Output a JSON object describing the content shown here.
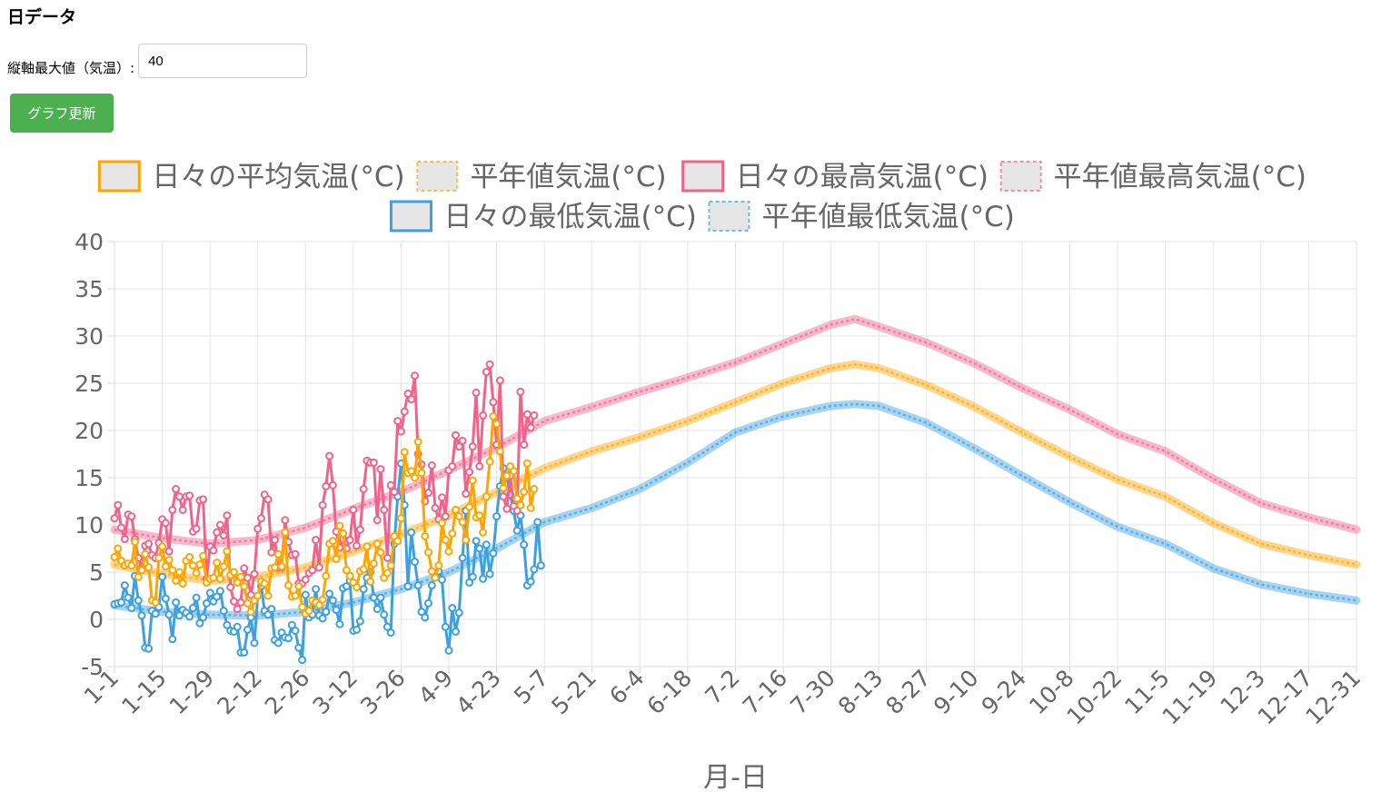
{
  "page": {
    "heading": "日データ",
    "ymax_label": "縦軸最大値（気温）:",
    "ymax_value": "40",
    "update_button": "グラフ更新"
  },
  "colors": {
    "avg": "#ffa500",
    "max": "#f0648c",
    "min": "#3ca0e1",
    "button": "#4caf50"
  },
  "chart_data": {
    "type": "line",
    "xlabel": "月-日",
    "ylabel": "",
    "ylim": [
      -5,
      40
    ],
    "yticks": [
      -5,
      0,
      5,
      10,
      15,
      20,
      25,
      30,
      35,
      40
    ],
    "xticks": [
      "1-1",
      "1-15",
      "1-29",
      "2-12",
      "2-26",
      "3-12",
      "3-26",
      "4-9",
      "4-23",
      "5-7",
      "5-21",
      "6-4",
      "6-18",
      "7-2",
      "7-16",
      "7-30",
      "8-13",
      "8-27",
      "9-10",
      "9-24",
      "10-8",
      "10-22",
      "11-5",
      "11-19",
      "12-3",
      "12-17",
      "12-31"
    ],
    "grid": true,
    "legend_position": "top",
    "legend": [
      {
        "label": "日々の平均気温(°C)",
        "color": "#ffa500",
        "dashed": false
      },
      {
        "label": "平年値気温(°C)",
        "color": "#ffa500",
        "dashed": true
      },
      {
        "label": "日々の最高気温(°C)",
        "color": "#f0648c",
        "dashed": false
      },
      {
        "label": "平年値最高気温(°C)",
        "color": "#f0648c",
        "dashed": true
      },
      {
        "label": "日々の最低気温(°C)",
        "color": "#3ca0e1",
        "dashed": false
      },
      {
        "label": "平年値最低気温(°C)",
        "color": "#3ca0e1",
        "dashed": true
      }
    ],
    "normal_series_keypoints": {
      "day_index": [
        0,
        14,
        28,
        42,
        56,
        70,
        84,
        98,
        112,
        126,
        140,
        154,
        168,
        182,
        196,
        210,
        217,
        224,
        238,
        252,
        266,
        280,
        294,
        308,
        322,
        336,
        350,
        364
      ],
      "normal_avg": [
        5.8,
        4.8,
        4.1,
        4.5,
        5.5,
        7.2,
        9.0,
        11.0,
        13.5,
        16.0,
        17.8,
        19.3,
        21.0,
        23.0,
        25.0,
        26.6,
        27.0,
        26.6,
        24.8,
        22.5,
        19.8,
        17.2,
        14.8,
        13.0,
        10.2,
        8.0,
        6.8,
        5.8
      ],
      "normal_max": [
        9.5,
        8.6,
        8.0,
        8.4,
        9.7,
        11.7,
        13.5,
        15.8,
        18.2,
        21.0,
        22.5,
        24.1,
        25.6,
        27.2,
        29.2,
        31.2,
        31.8,
        31.0,
        29.3,
        27.1,
        24.5,
        22.2,
        19.6,
        17.8,
        14.9,
        12.3,
        10.8,
        9.5
      ],
      "normal_min": [
        1.5,
        0.8,
        0.5,
        0.4,
        0.8,
        1.8,
        3.2,
        5.0,
        7.5,
        10.3,
        11.8,
        13.8,
        16.6,
        19.8,
        21.5,
        22.6,
        22.8,
        22.6,
        20.8,
        18.1,
        15.2,
        12.4,
        9.8,
        8.0,
        5.4,
        3.7,
        2.7,
        2.0
      ]
    },
    "daily_series": {
      "start_day_index": 0,
      "avg": [
        6.6,
        7.5,
        6.2,
        5.7,
        5.9,
        5.7,
        8.2,
        4.5,
        5.2,
        6.9,
        5.5,
        2.0,
        1.8,
        6.5,
        7.7,
        5.6,
        6.3,
        5.2,
        4.1,
        5.0,
        3.8,
        6.2,
        6.6,
        5.7,
        4.9,
        5.8,
        6.7,
        3.9,
        4.3,
        4.4,
        6.0,
        4.3,
        5.6,
        7.2,
        4.7,
        5.0,
        3.9,
        4.5,
        3.5,
        1.7,
        0.8,
        2.0,
        2.5,
        4.0,
        3.8,
        2.5,
        5.4,
        5.5,
        6.9,
        5.6,
        9.2,
        3.6,
        2.4,
        2.5,
        3.5,
        1.3,
        0.6,
        0.9,
        2.0,
        1.8,
        1.5,
        2.1,
        4.6,
        8.0,
        8.3,
        6.4,
        9.9,
        9.1,
        5.2,
        4.6,
        3.9,
        3.4,
        5.1,
        5.3,
        7.7,
        4.0,
        5.9,
        8.0,
        7.1,
        4.4,
        4.9,
        5.7,
        8.8,
        8.3,
        10.7,
        17.7,
        15.5,
        15.7,
        15.0,
        18.8,
        15.5,
        8.8,
        7.1,
        5.1,
        4.4,
        5.7,
        10.2,
        8.4,
        7.2,
        9.1,
        11.6,
        10.9,
        10.3,
        8.4,
        11.9,
        14.7,
        10.8,
        11.0,
        9.2,
        13.0,
        16.7,
        21.5,
        20.7,
        17.8,
        13.9,
        15.2,
        16.2,
        15.7,
        12.8,
        12.1,
        13.5,
        16.5,
        11.8,
        13.8
      ],
      "max": [
        10.7,
        12.1,
        9.7,
        8.5,
        11.1,
        10.9,
        8.5,
        6.5,
        5.4,
        7.8,
        8.0,
        6.8,
        6.5,
        8.1,
        10.6,
        10.2,
        7.2,
        11.6,
        13.8,
        13.0,
        11.6,
        13.0,
        13.1,
        9.3,
        9.6,
        12.6,
        12.7,
        4.3,
        7.7,
        7.3,
        9.2,
        10.0,
        8.9,
        11.0,
        3.4,
        1.9,
        1.1,
        1.8,
        5.4,
        4.4,
        2.6,
        4.8,
        9.6,
        10.7,
        13.2,
        12.7,
        7.1,
        8.4,
        5.5,
        5.5,
        10.5,
        8.2,
        6.8,
        6.9,
        3.8,
        3.8,
        4.2,
        4.9,
        5.2,
        8.4,
        5.5,
        12.1,
        14.1,
        17.3,
        14.2,
        9.3,
        7.6,
        8.5,
        7.5,
        8.4,
        11.6,
        7.8,
        9.5,
        13.8,
        16.8,
        16.6,
        16.6,
        10.5,
        15.9,
        11.6,
        6.5,
        14.2,
        13.5,
        21.0,
        19.9,
        22.0,
        23.9,
        23.3,
        25.8,
        17.5,
        16.4,
        12.5,
        13.4,
        16.3,
        11.8,
        10.6,
        12.9,
        10.9,
        15.8,
        16.2,
        19.5,
        18.3,
        18.9,
        13.3,
        15.6,
        18.3,
        24.0,
        16.2,
        21.6,
        26.2,
        27.0,
        23.0,
        18.5,
        25.3,
        13.0,
        11.7,
        15.2,
        12.0,
        11.5,
        24.1,
        18.5,
        21.7,
        20.3,
        21.6
      ],
      "min": [
        1.6,
        1.7,
        1.8,
        3.6,
        2.3,
        1.2,
        4.6,
        2.0,
        0.4,
        -3.0,
        -3.1,
        0.9,
        0.6,
        1.3,
        4.5,
        2.2,
        0.5,
        -2.1,
        1.8,
        0.4,
        1.0,
        0.7,
        0.3,
        1.2,
        2.3,
        -0.4,
        0.2,
        1.7,
        2.8,
        1.9,
        2.4,
        3.0,
        0.9,
        -0.6,
        -1.2,
        -1.3,
        -0.8,
        -3.5,
        -3.5,
        -1.1,
        0.2,
        -2.5,
        2.5,
        3.5,
        0.9,
        0.5,
        1.1,
        -2.2,
        -2.5,
        -1.4,
        -1.9,
        -2.0,
        -0.6,
        -1.2,
        -3.0,
        -4.3,
        2.6,
        0.2,
        0.5,
        3.2,
        0.4,
        0.1,
        0.8,
        2.7,
        2.0,
        1.0,
        -0.5,
        3.3,
        3.5,
        4.1,
        -1.2,
        -1.1,
        -0.2,
        3.2,
        4.4,
        5.0,
        2.3,
        1.1,
        2.3,
        0.5,
        -0.8,
        -1.4,
        8.0,
        13.0,
        16.5,
        12.1,
        3.5,
        9.2,
        6.1,
        3.6,
        0.8,
        0.2,
        1.7,
        3.6,
        4.6,
        5.1,
        4.2,
        -0.8,
        -3.3,
        1.2,
        -1.3,
        0.7,
        6.5,
        11.5,
        3.9,
        4.5,
        8.3,
        7.5,
        4.3,
        7.9,
        4.8,
        7.0,
        10.9,
        14.1,
        16.0,
        15.2,
        13.2,
        11.5,
        9.4,
        11.0,
        7.9,
        3.6,
        4.0,
        5.3,
        10.3,
        5.7
      ]
    }
  }
}
